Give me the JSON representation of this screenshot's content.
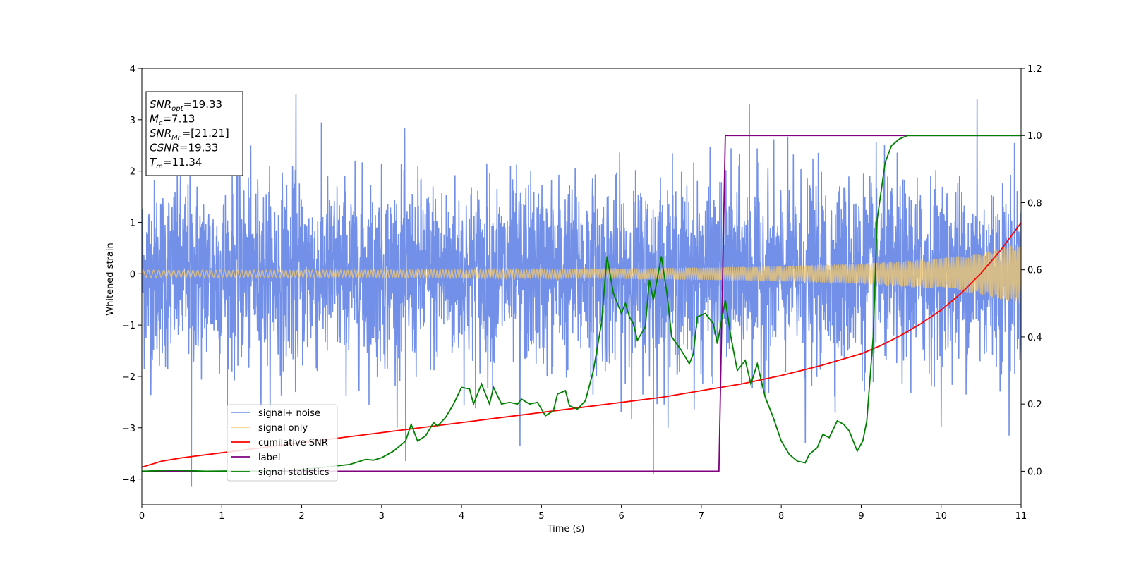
{
  "chart_data": {
    "type": "line",
    "xlabel": "Time (s)",
    "ylabel": "Whitened strain",
    "xlim": [
      0,
      11
    ],
    "ylim": [
      -4.5,
      4
    ],
    "y2lim": [
      -0.1,
      1.2
    ],
    "xticks": [
      0,
      1,
      2,
      3,
      4,
      5,
      6,
      7,
      8,
      9,
      10,
      11
    ],
    "xtick_labels": [
      "0",
      "1",
      "2",
      "3",
      "4",
      "5",
      "6",
      "7",
      "8",
      "9",
      "10",
      "11"
    ],
    "yticks": [
      4,
      3,
      2,
      1,
      0,
      -1,
      -2,
      -3,
      -4
    ],
    "ytick_labels": [
      "4",
      "3",
      "2",
      "1",
      "0",
      "−1",
      "−2",
      "−3",
      "−4"
    ],
    "y2ticks": [
      1.2,
      1.0,
      0.8,
      0.6,
      0.4,
      0.2,
      0.0
    ],
    "y2tick_labels": [
      "1.2",
      "1.0",
      "0.8",
      "0.6",
      "0.4",
      "0.2",
      "0.0"
    ],
    "grid": false,
    "legend_position": "lower-left",
    "annotation": {
      "lines": [
        {
          "sym": "SNR",
          "sub": "opt",
          "val": "=19.33"
        },
        {
          "sym": "M",
          "sub": "c",
          "val": "=7.13"
        },
        {
          "sym": "SNR",
          "sub": "MF",
          "val": "=[21.21]"
        },
        {
          "sym": "CSNR",
          "sub": "",
          "val": "=19.33"
        },
        {
          "sym": "T",
          "sub": "m",
          "val": "=11.34"
        }
      ]
    },
    "series": [
      {
        "name": "signal+ noise",
        "axis": "left",
        "color": "#6a8ae6",
        "description_values": {
          "noise_std": 0.9,
          "spike_max": 3.5,
          "spike_min": -4.15
        },
        "spikes": [
          [
            0.62,
            -4.15
          ],
          [
            1.93,
            3.5
          ],
          [
            3.3,
            -3.65
          ],
          [
            4.73,
            -3.35
          ],
          [
            6.4,
            -3.9
          ],
          [
            7.6,
            3.3
          ],
          [
            8.3,
            -3.3
          ],
          [
            10.45,
            3.4
          ],
          [
            10.85,
            -3.15
          ]
        ]
      },
      {
        "name": "signal only",
        "axis": "left",
        "color": "#f5c96b",
        "envelope": {
          "x": [
            0,
            2,
            4,
            6,
            7,
            8,
            9,
            10,
            10.5,
            11
          ],
          "y": [
            0.07,
            0.07,
            0.08,
            0.1,
            0.12,
            0.15,
            0.2,
            0.3,
            0.4,
            0.6
          ]
        }
      },
      {
        "name": "cumilative SNR",
        "axis": "right",
        "color": "#ff0000",
        "x": [
          0,
          0.25,
          0.5,
          1,
          1.5,
          2,
          2.5,
          3,
          3.5,
          4,
          4.5,
          5,
          5.5,
          6,
          6.5,
          7,
          7.5,
          8,
          8.5,
          9,
          9.25,
          9.5,
          9.75,
          10,
          10.25,
          10.5,
          10.75,
          11
        ],
        "y": [
          0.012,
          0.03,
          0.04,
          0.055,
          0.07,
          0.085,
          0.1,
          0.115,
          0.13,
          0.145,
          0.16,
          0.175,
          0.19,
          0.205,
          0.22,
          0.24,
          0.26,
          0.285,
          0.315,
          0.35,
          0.375,
          0.405,
          0.44,
          0.48,
          0.53,
          0.59,
          0.66,
          0.74
        ]
      },
      {
        "name": "label",
        "axis": "right",
        "color": "#800080",
        "x": [
          0,
          7.22,
          7.3,
          11
        ],
        "y": [
          0,
          0,
          1,
          1
        ]
      },
      {
        "name": "signal statistics",
        "axis": "right",
        "color": "#008000",
        "x": [
          0,
          0.4,
          0.8,
          1.2,
          1.6,
          2.0,
          2.4,
          2.6,
          2.8,
          2.9,
          3.0,
          3.15,
          3.3,
          3.37,
          3.45,
          3.55,
          3.65,
          3.7,
          3.8,
          3.9,
          4.0,
          4.1,
          4.15,
          4.25,
          4.35,
          4.4,
          4.5,
          4.6,
          4.7,
          4.75,
          4.85,
          4.95,
          5.05,
          5.15,
          5.2,
          5.3,
          5.35,
          5.45,
          5.55,
          5.65,
          5.75,
          5.82,
          5.9,
          6.0,
          6.05,
          6.1,
          6.15,
          6.2,
          6.3,
          6.35,
          6.4,
          6.5,
          6.57,
          6.63,
          6.75,
          6.85,
          6.9,
          6.95,
          7.05,
          7.15,
          7.2,
          7.3,
          7.37,
          7.45,
          7.55,
          7.62,
          7.7,
          7.8,
          7.9,
          8.0,
          8.1,
          8.2,
          8.3,
          8.35,
          8.45,
          8.52,
          8.6,
          8.7,
          8.78,
          8.85,
          8.95,
          9.02,
          9.07,
          9.15,
          9.2,
          9.3,
          9.38,
          9.48,
          9.58,
          9.7,
          10,
          11
        ],
        "y": [
          0.0,
          0.003,
          0.0,
          0.001,
          0.0,
          0.005,
          0.015,
          0.02,
          0.035,
          0.033,
          0.04,
          0.06,
          0.09,
          0.14,
          0.09,
          0.105,
          0.145,
          0.135,
          0.16,
          0.2,
          0.25,
          0.245,
          0.2,
          0.26,
          0.2,
          0.25,
          0.2,
          0.205,
          0.2,
          0.215,
          0.2,
          0.205,
          0.165,
          0.18,
          0.23,
          0.24,
          0.195,
          0.185,
          0.21,
          0.3,
          0.44,
          0.64,
          0.53,
          0.47,
          0.5,
          0.46,
          0.44,
          0.39,
          0.43,
          0.57,
          0.51,
          0.64,
          0.53,
          0.4,
          0.36,
          0.32,
          0.35,
          0.46,
          0.47,
          0.44,
          0.38,
          0.51,
          0.4,
          0.3,
          0.33,
          0.26,
          0.32,
          0.22,
          0.16,
          0.09,
          0.05,
          0.03,
          0.025,
          0.05,
          0.07,
          0.11,
          0.1,
          0.15,
          0.14,
          0.12,
          0.06,
          0.09,
          0.15,
          0.4,
          0.75,
          0.92,
          0.97,
          0.99,
          1.0,
          1.0,
          1.0,
          1.0
        ]
      }
    ]
  }
}
